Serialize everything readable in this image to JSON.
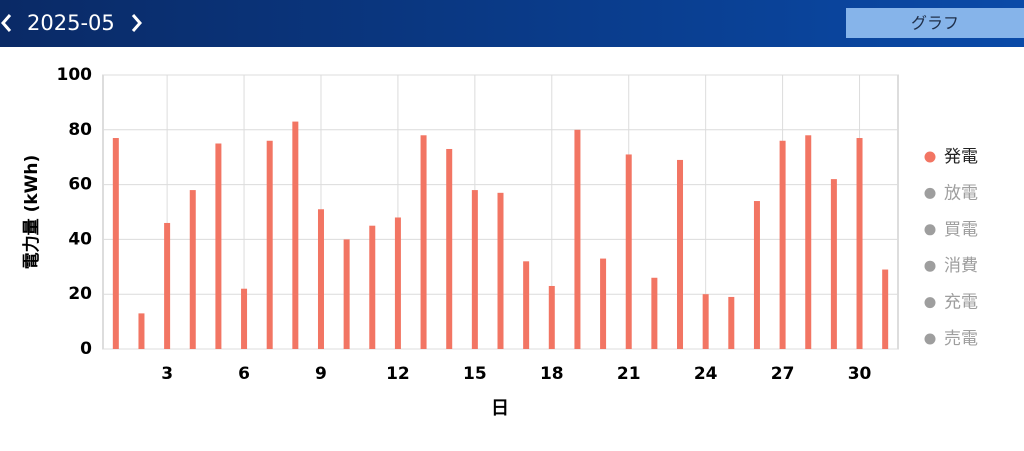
{
  "header": {
    "month": "2025-05",
    "view_button": "グラフ"
  },
  "chart_data": {
    "type": "bar",
    "y_label": "電力量 (kWh)",
    "x_label": "日",
    "x": [
      1,
      2,
      3,
      4,
      5,
      6,
      7,
      8,
      9,
      10,
      11,
      12,
      13,
      14,
      15,
      16,
      17,
      18,
      19,
      20,
      21,
      22,
      23,
      24,
      25,
      26,
      27,
      28,
      29,
      30,
      31
    ],
    "xlim": [
      0.5,
      31.5
    ],
    "xticks": [
      3,
      6,
      9,
      12,
      15,
      18,
      21,
      24,
      27,
      30
    ],
    "ylim": [
      0,
      100
    ],
    "yticks": [
      0,
      20,
      40,
      60,
      80,
      100
    ],
    "grid": true,
    "series": [
      {
        "name": "発電",
        "color": "#f27563",
        "values": [
          77,
          13,
          46,
          58,
          75,
          22,
          76,
          83,
          51,
          40,
          45,
          48,
          78,
          73,
          58,
          57,
          32,
          23,
          80,
          33,
          71,
          26,
          69,
          20,
          19,
          54,
          76,
          78,
          62,
          77,
          29
        ]
      }
    ],
    "inactive_legend": [
      {
        "name": "放電"
      },
      {
        "name": "買電"
      },
      {
        "name": "消費"
      },
      {
        "name": "充電"
      },
      {
        "name": "売電"
      }
    ],
    "inactive_color": "#9e9e9e"
  }
}
